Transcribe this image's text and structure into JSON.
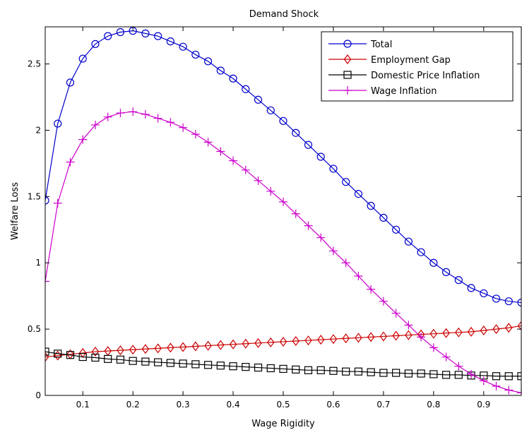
{
  "chart_data": {
    "type": "line",
    "title": "Demand Shock",
    "xlabel": "Wage Rigidity",
    "ylabel": "Welfare Loss",
    "xlim": [
      0.025,
      0.975
    ],
    "ylim": [
      0,
      2.78
    ],
    "grid": false,
    "legend_position": "top-right",
    "x_ticks": [
      "0.1",
      "0.2",
      "0.3",
      "0.4",
      "0.5",
      "0.6",
      "0.7",
      "0.8",
      "0.9"
    ],
    "y_ticks": [
      "0",
      "0.5",
      "1",
      "1.5",
      "2",
      "2.5"
    ],
    "x": [
      0.025,
      0.05,
      0.075,
      0.1,
      0.125,
      0.15,
      0.175,
      0.2,
      0.225,
      0.25,
      0.275,
      0.3,
      0.325,
      0.35,
      0.375,
      0.4,
      0.425,
      0.45,
      0.475,
      0.5,
      0.525,
      0.55,
      0.575,
      0.6,
      0.625,
      0.65,
      0.675,
      0.7,
      0.725,
      0.75,
      0.775,
      0.8,
      0.825,
      0.85,
      0.875,
      0.9,
      0.925,
      0.95,
      0.975
    ],
    "series": [
      {
        "name": "Total",
        "color": "#0000cc",
        "marker": "circle",
        "values": [
          1.47,
          2.05,
          2.36,
          2.54,
          2.65,
          2.71,
          2.74,
          2.75,
          2.73,
          2.71,
          2.67,
          2.63,
          2.57,
          2.52,
          2.45,
          2.39,
          2.31,
          2.23,
          2.15,
          2.07,
          1.98,
          1.89,
          1.8,
          1.71,
          1.61,
          1.52,
          1.43,
          1.34,
          1.25,
          1.16,
          1.08,
          1.0,
          0.93,
          0.87,
          0.81,
          0.77,
          0.73,
          0.71,
          0.7
        ]
      },
      {
        "name": "Employment Gap",
        "color": "#cc0000",
        "marker": "diamond",
        "values": [
          0.29,
          0.3,
          0.31,
          0.32,
          0.33,
          0.335,
          0.34,
          0.345,
          0.35,
          0.355,
          0.36,
          0.365,
          0.37,
          0.375,
          0.38,
          0.385,
          0.39,
          0.395,
          0.4,
          0.405,
          0.41,
          0.415,
          0.42,
          0.425,
          0.43,
          0.435,
          0.44,
          0.445,
          0.45,
          0.455,
          0.46,
          0.465,
          0.47,
          0.475,
          0.48,
          0.49,
          0.5,
          0.51,
          0.525
        ]
      },
      {
        "name": "Domestic Price Inflation",
        "color": "#000000",
        "marker": "square",
        "values": [
          0.33,
          0.315,
          0.305,
          0.29,
          0.285,
          0.275,
          0.27,
          0.26,
          0.255,
          0.25,
          0.245,
          0.24,
          0.235,
          0.23,
          0.225,
          0.22,
          0.215,
          0.21,
          0.205,
          0.2,
          0.195,
          0.19,
          0.19,
          0.185,
          0.18,
          0.18,
          0.175,
          0.17,
          0.17,
          0.165,
          0.165,
          0.16,
          0.155,
          0.155,
          0.15,
          0.15,
          0.145,
          0.145,
          0.145
        ]
      },
      {
        "name": "Wage Inflation",
        "color": "#cc00cc",
        "marker": "plus",
        "values": [
          0.86,
          1.45,
          1.76,
          1.93,
          2.04,
          2.1,
          2.13,
          2.14,
          2.12,
          2.09,
          2.06,
          2.02,
          1.97,
          1.91,
          1.84,
          1.77,
          1.7,
          1.62,
          1.54,
          1.46,
          1.37,
          1.28,
          1.19,
          1.09,
          1.0,
          0.9,
          0.8,
          0.71,
          0.62,
          0.53,
          0.44,
          0.36,
          0.29,
          0.22,
          0.16,
          0.11,
          0.07,
          0.04,
          0.02
        ]
      }
    ]
  }
}
